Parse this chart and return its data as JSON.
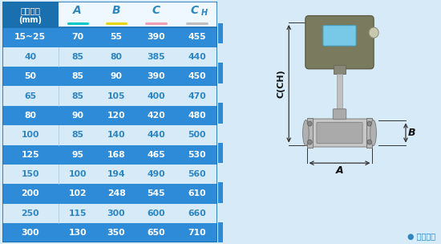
{
  "headers": [
    "仪表口径\n(mm)",
    "A",
    "B",
    "C",
    "CH"
  ],
  "rows": [
    [
      "15~25",
      "70",
      "55",
      "390",
      "455"
    ],
    [
      "40",
      "85",
      "80",
      "385",
      "440"
    ],
    [
      "50",
      "85",
      "90",
      "390",
      "450"
    ],
    [
      "65",
      "85",
      "105",
      "400",
      "470"
    ],
    [
      "80",
      "90",
      "120",
      "420",
      "480"
    ],
    [
      "100",
      "85",
      "140",
      "440",
      "500"
    ],
    [
      "125",
      "95",
      "168",
      "465",
      "530"
    ],
    [
      "150",
      "100",
      "194",
      "490",
      "560"
    ],
    [
      "200",
      "102",
      "248",
      "545",
      "610"
    ],
    [
      "250",
      "115",
      "300",
      "600",
      "660"
    ],
    [
      "300",
      "130",
      "350",
      "650",
      "710"
    ]
  ],
  "header_first_col_bg": "#1a6faf",
  "header_cols_bg": "#ffffff",
  "row_dark_bg": "#2e8bd8",
  "row_light_bg": "#d6eaf8",
  "text_white": "#ffffff",
  "text_blue": "#2e86c1",
  "text_dark_blue": "#1a5276",
  "col_header_colors": [
    "none",
    "#2e86c1",
    "#2e86c1",
    "#2e86c1",
    "#2e86c1"
  ],
  "underline_colors": [
    "none",
    "#00c8c8",
    "#e8d800",
    "#f0a0b0",
    "#c0c0c0"
  ],
  "bg_color": "#d6eaf8",
  "outer_border_color": "#1a6faf",
  "divider_color": "#aacce8",
  "label_note": "● 常规仪表",
  "label_color": "#2e86c1"
}
